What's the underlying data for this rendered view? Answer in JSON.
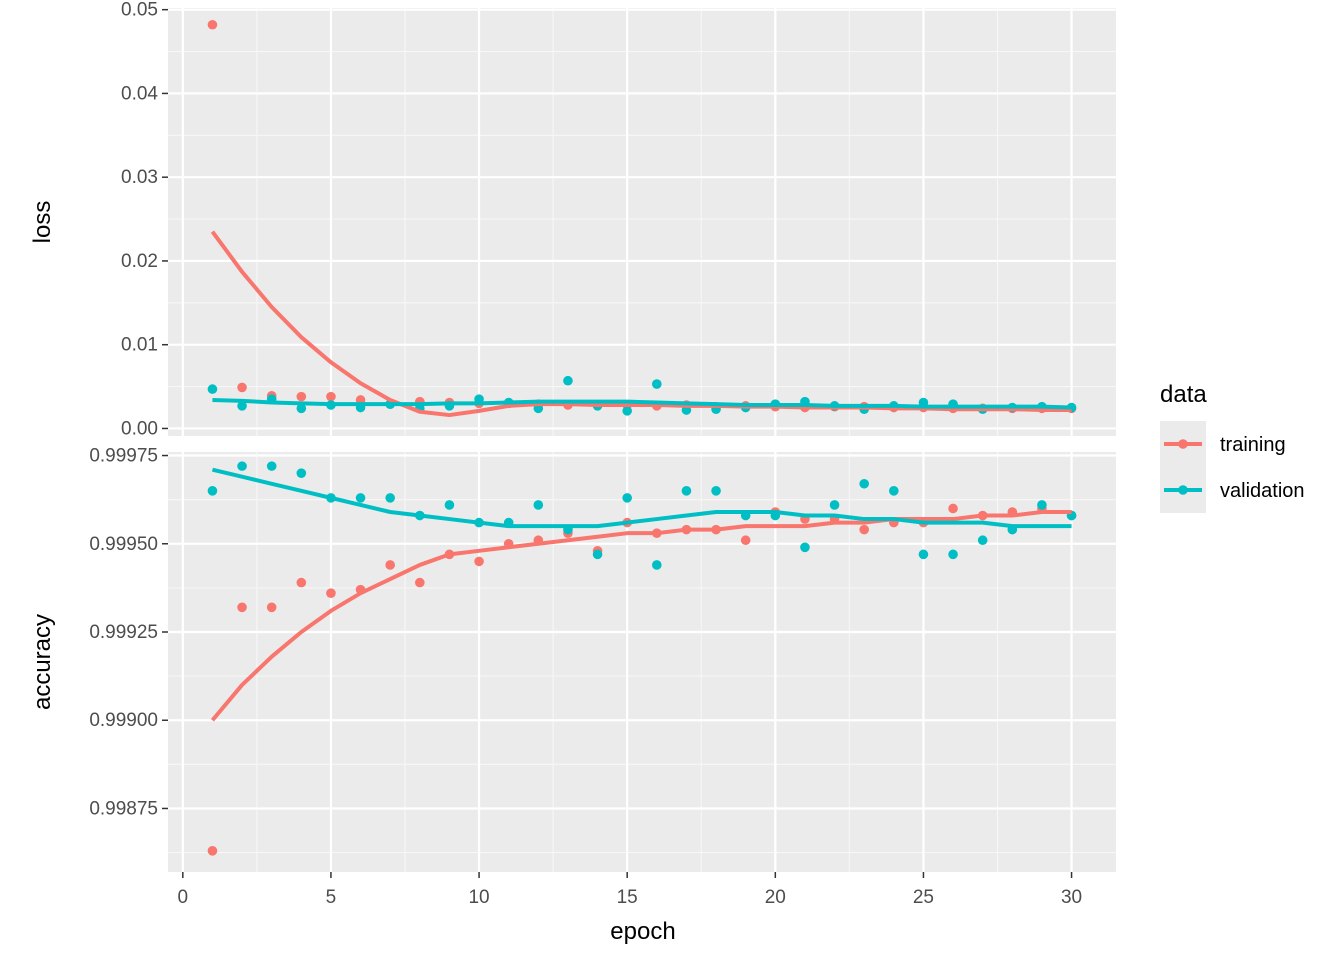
{
  "chart_data": {
    "type": "scatter",
    "x_label": "epoch",
    "x_ticks": [
      0,
      5,
      10,
      15,
      20,
      25,
      30
    ],
    "xlim": [
      -0.5,
      31.5
    ],
    "grid": true,
    "legend": {
      "title": "data",
      "position": "right",
      "entries": [
        {
          "label": "training",
          "color": "#F8766D"
        },
        {
          "label": "validation",
          "color": "#00BFC4"
        }
      ]
    },
    "panels": [
      {
        "name": "loss",
        "y_label": "loss",
        "ylim": [
          -0.0009,
          0.0502
        ],
        "y_ticks": [
          0.0,
          0.01,
          0.02,
          0.03,
          0.04,
          0.05
        ],
        "y_tick_labels": [
          "0.00",
          "0.01",
          "0.02",
          "0.03",
          "0.04",
          "0.05"
        ],
        "series": [
          {
            "name": "training",
            "color": "#F8766D",
            "x": [
              1,
              2,
              3,
              4,
              5,
              6,
              7,
              8,
              9,
              10,
              11,
              12,
              13,
              14,
              15,
              16,
              17,
              18,
              19,
              20,
              21,
              22,
              23,
              24,
              25,
              26,
              27,
              28,
              29,
              30
            ],
            "y": [
              0.0482,
              0.0049,
              0.0039,
              0.0038,
              0.0038,
              0.0034,
              0.0029,
              0.0032,
              0.0031,
              0.003,
              0.003,
              0.0029,
              0.0028,
              0.0028,
              0.0028,
              0.0027,
              0.0028,
              0.0026,
              0.0027,
              0.0026,
              0.0025,
              0.0026,
              0.0026,
              0.0025,
              0.0025,
              0.0024,
              0.0024,
              0.0024,
              0.0024,
              0.0024
            ],
            "smooth": {
              "x": [
                1,
                2,
                3,
                4,
                5,
                6,
                7,
                8,
                9,
                10,
                11,
                12,
                13,
                14,
                15,
                16,
                17,
                18,
                19,
                20,
                21,
                22,
                23,
                24,
                25,
                26,
                27,
                28,
                29,
                30
              ],
              "y": [
                0.0235,
                0.0187,
                0.0145,
                0.0109,
                0.0079,
                0.0054,
                0.0034,
                0.002,
                0.0016,
                0.0021,
                0.0027,
                0.0029,
                0.0029,
                0.0028,
                0.0028,
                0.0028,
                0.0027,
                0.0027,
                0.0026,
                0.0026,
                0.0025,
                0.0025,
                0.0025,
                0.0024,
                0.0024,
                0.0023,
                0.0023,
                0.0023,
                0.0022,
                0.0022
              ]
            }
          },
          {
            "name": "validation",
            "color": "#00BFC4",
            "x": [
              1,
              2,
              3,
              4,
              5,
              6,
              7,
              8,
              9,
              10,
              11,
              12,
              13,
              14,
              15,
              16,
              17,
              18,
              19,
              20,
              21,
              22,
              23,
              24,
              25,
              26,
              27,
              28,
              29,
              30
            ],
            "y": [
              0.0047,
              0.0027,
              0.0035,
              0.0024,
              0.0028,
              0.0025,
              0.0029,
              0.0024,
              0.0027,
              0.0035,
              0.0031,
              0.0024,
              0.0057,
              0.0027,
              0.0021,
              0.0053,
              0.0022,
              0.0023,
              0.0025,
              0.0029,
              0.0032,
              0.0027,
              0.0023,
              0.0027,
              0.0031,
              0.0029,
              0.0023,
              0.0025,
              0.0026,
              0.0025
            ],
            "smooth": {
              "x": [
                1,
                2,
                3,
                4,
                5,
                6,
                7,
                8,
                9,
                10,
                11,
                12,
                13,
                14,
                15,
                16,
                17,
                18,
                19,
                20,
                21,
                22,
                23,
                24,
                25,
                26,
                27,
                28,
                29,
                30
              ],
              "y": [
                0.0034,
                0.0033,
                0.0031,
                0.003,
                0.0029,
                0.0029,
                0.0029,
                0.0029,
                0.003,
                0.003,
                0.0031,
                0.0032,
                0.0032,
                0.0032,
                0.0032,
                0.0031,
                0.003,
                0.0029,
                0.0028,
                0.0028,
                0.0028,
                0.0027,
                0.0027,
                0.0027,
                0.0026,
                0.0026,
                0.0026,
                0.0026,
                0.0026,
                0.0025
              ]
            }
          }
        ]
      },
      {
        "name": "accuracy",
        "y_label": "accuracy",
        "ylim": [
          0.99857,
          0.99976
        ],
        "y_ticks": [
          0.99875,
          0.999,
          0.99925,
          0.9995,
          0.99975
        ],
        "y_tick_labels": [
          "0.99875",
          "0.99900",
          "0.99925",
          "0.99950",
          "0.99975"
        ],
        "series": [
          {
            "name": "training",
            "color": "#F8766D",
            "x": [
              1,
              2,
              3,
              4,
              5,
              6,
              7,
              8,
              9,
              10,
              11,
              12,
              13,
              14,
              15,
              16,
              17,
              18,
              19,
              20,
              21,
              22,
              23,
              24,
              25,
              26,
              27,
              28,
              29,
              30
            ],
            "y": [
              0.99863,
              0.99932,
              0.99932,
              0.99939,
              0.99936,
              0.99937,
              0.99944,
              0.99939,
              0.99947,
              0.99945,
              0.9995,
              0.99951,
              0.99953,
              0.99948,
              0.99956,
              0.99953,
              0.99954,
              0.99954,
              0.99951,
              0.99959,
              0.99957,
              0.99957,
              0.99954,
              0.99956,
              0.99956,
              0.9996,
              0.99958,
              0.99959,
              0.9996,
              0.99958
            ],
            "smooth": {
              "x": [
                1,
                2,
                3,
                4,
                5,
                6,
                7,
                8,
                9,
                10,
                11,
                12,
                13,
                14,
                15,
                16,
                17,
                18,
                19,
                20,
                21,
                22,
                23,
                24,
                25,
                26,
                27,
                28,
                29,
                30
              ],
              "y": [
                0.999,
                0.9991,
                0.99918,
                0.99925,
                0.99931,
                0.99936,
                0.9994,
                0.99944,
                0.99947,
                0.99948,
                0.99949,
                0.9995,
                0.99951,
                0.99952,
                0.99953,
                0.99953,
                0.99954,
                0.99954,
                0.99955,
                0.99955,
                0.99955,
                0.99956,
                0.99956,
                0.99957,
                0.99957,
                0.99957,
                0.99958,
                0.99958,
                0.99959,
                0.99959
              ]
            }
          },
          {
            "name": "validation",
            "color": "#00BFC4",
            "x": [
              1,
              2,
              3,
              4,
              5,
              6,
              7,
              8,
              9,
              10,
              11,
              12,
              13,
              14,
              15,
              16,
              17,
              18,
              19,
              20,
              21,
              22,
              23,
              24,
              25,
              26,
              27,
              28,
              29,
              30
            ],
            "y": [
              0.99965,
              0.99972,
              0.99972,
              0.9997,
              0.99963,
              0.99963,
              0.99963,
              0.99958,
              0.99961,
              0.99956,
              0.99956,
              0.99961,
              0.99954,
              0.99947,
              0.99963,
              0.99944,
              0.99965,
              0.99965,
              0.99958,
              0.99958,
              0.99949,
              0.99961,
              0.99967,
              0.99965,
              0.99947,
              0.99947,
              0.99951,
              0.99954,
              0.99961,
              0.99958
            ],
            "smooth": {
              "x": [
                1,
                2,
                3,
                4,
                5,
                6,
                7,
                8,
                9,
                10,
                11,
                12,
                13,
                14,
                15,
                16,
                17,
                18,
                19,
                20,
                21,
                22,
                23,
                24,
                25,
                26,
                27,
                28,
                29,
                30
              ],
              "y": [
                0.99971,
                0.99969,
                0.99967,
                0.99965,
                0.99963,
                0.99961,
                0.99959,
                0.99958,
                0.99957,
                0.99956,
                0.99955,
                0.99955,
                0.99955,
                0.99955,
                0.99956,
                0.99957,
                0.99958,
                0.99959,
                0.99959,
                0.99959,
                0.99958,
                0.99958,
                0.99957,
                0.99957,
                0.99956,
                0.99956,
                0.99956,
                0.99955,
                0.99955,
                0.99955
              ]
            }
          }
        ]
      }
    ]
  }
}
